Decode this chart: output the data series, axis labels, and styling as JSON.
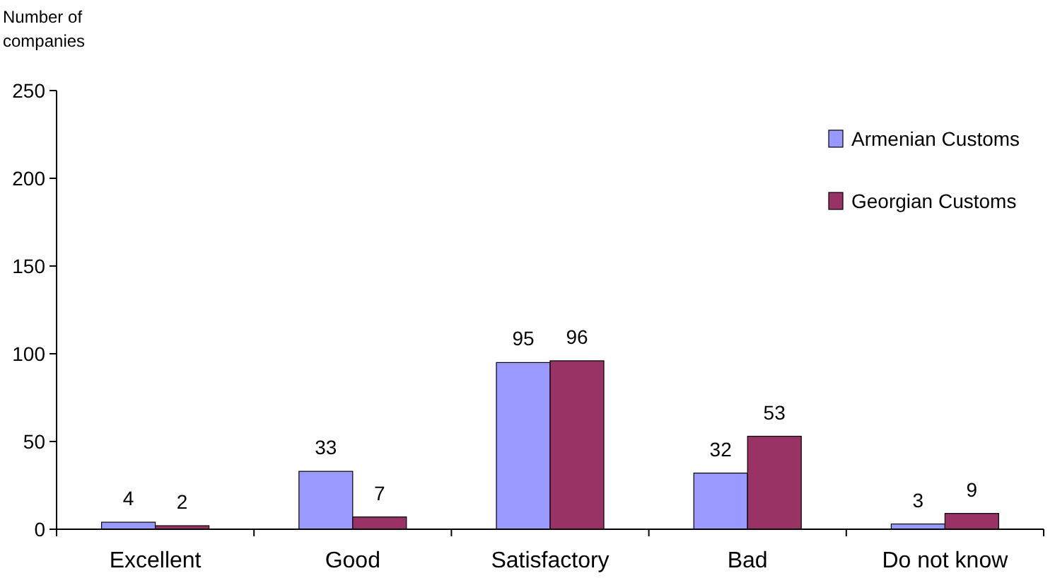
{
  "chart_data": {
    "type": "bar",
    "ylabel": "Number of companies",
    "categories": [
      "Excellent",
      "Good",
      "Satisfactory",
      "Bad",
      "Do not know"
    ],
    "series": [
      {
        "name": "Armenian Customs",
        "color": "#9999ff",
        "values": [
          4,
          33,
          95,
          32,
          3
        ]
      },
      {
        "name": "Georgian Customs",
        "color": "#993366",
        "values": [
          2,
          7,
          96,
          53,
          9
        ]
      }
    ],
    "ylim": [
      0,
      250
    ],
    "yticks": [
      0,
      50,
      100,
      150,
      200,
      250
    ],
    "data_labels": true,
    "legend": "top right",
    "grid": false
  }
}
